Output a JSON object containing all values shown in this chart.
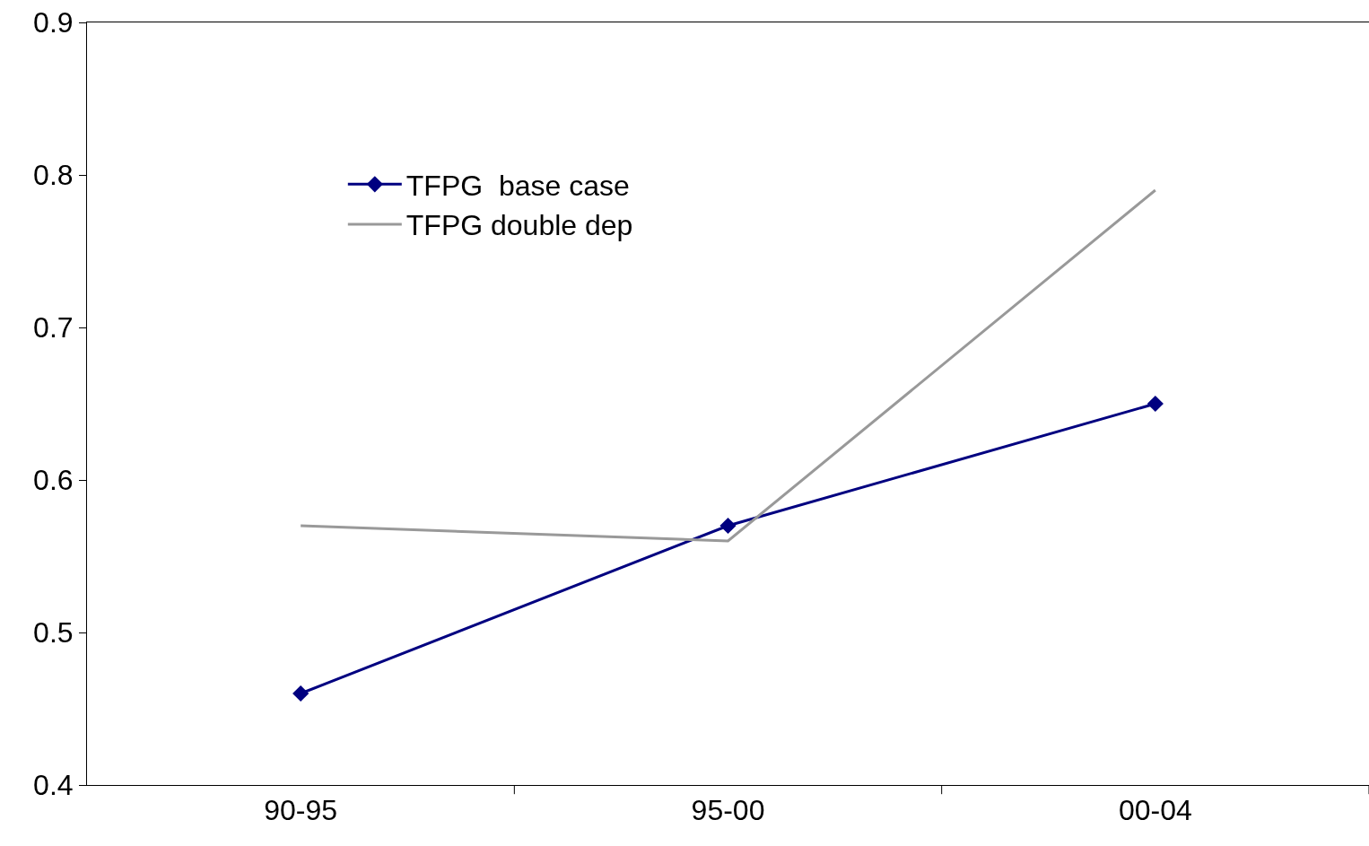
{
  "chart_data": {
    "type": "line",
    "categories": [
      "90-95",
      "95-00",
      "00-04"
    ],
    "series": [
      {
        "name": "TFPG  base case",
        "color": "#000080",
        "values": [
          0.46,
          0.57,
          0.65
        ],
        "marker": "diamond"
      },
      {
        "name": "TFPG double dep",
        "color": "#999999",
        "values": [
          0.57,
          0.56,
          0.79
        ],
        "marker": "none"
      }
    ],
    "ylim": [
      0.4,
      0.9
    ],
    "yticks": [
      0.4,
      0.5,
      0.6,
      0.7,
      0.8,
      0.9
    ],
    "grid": false,
    "legend": "top left",
    "line_style": "solid"
  }
}
